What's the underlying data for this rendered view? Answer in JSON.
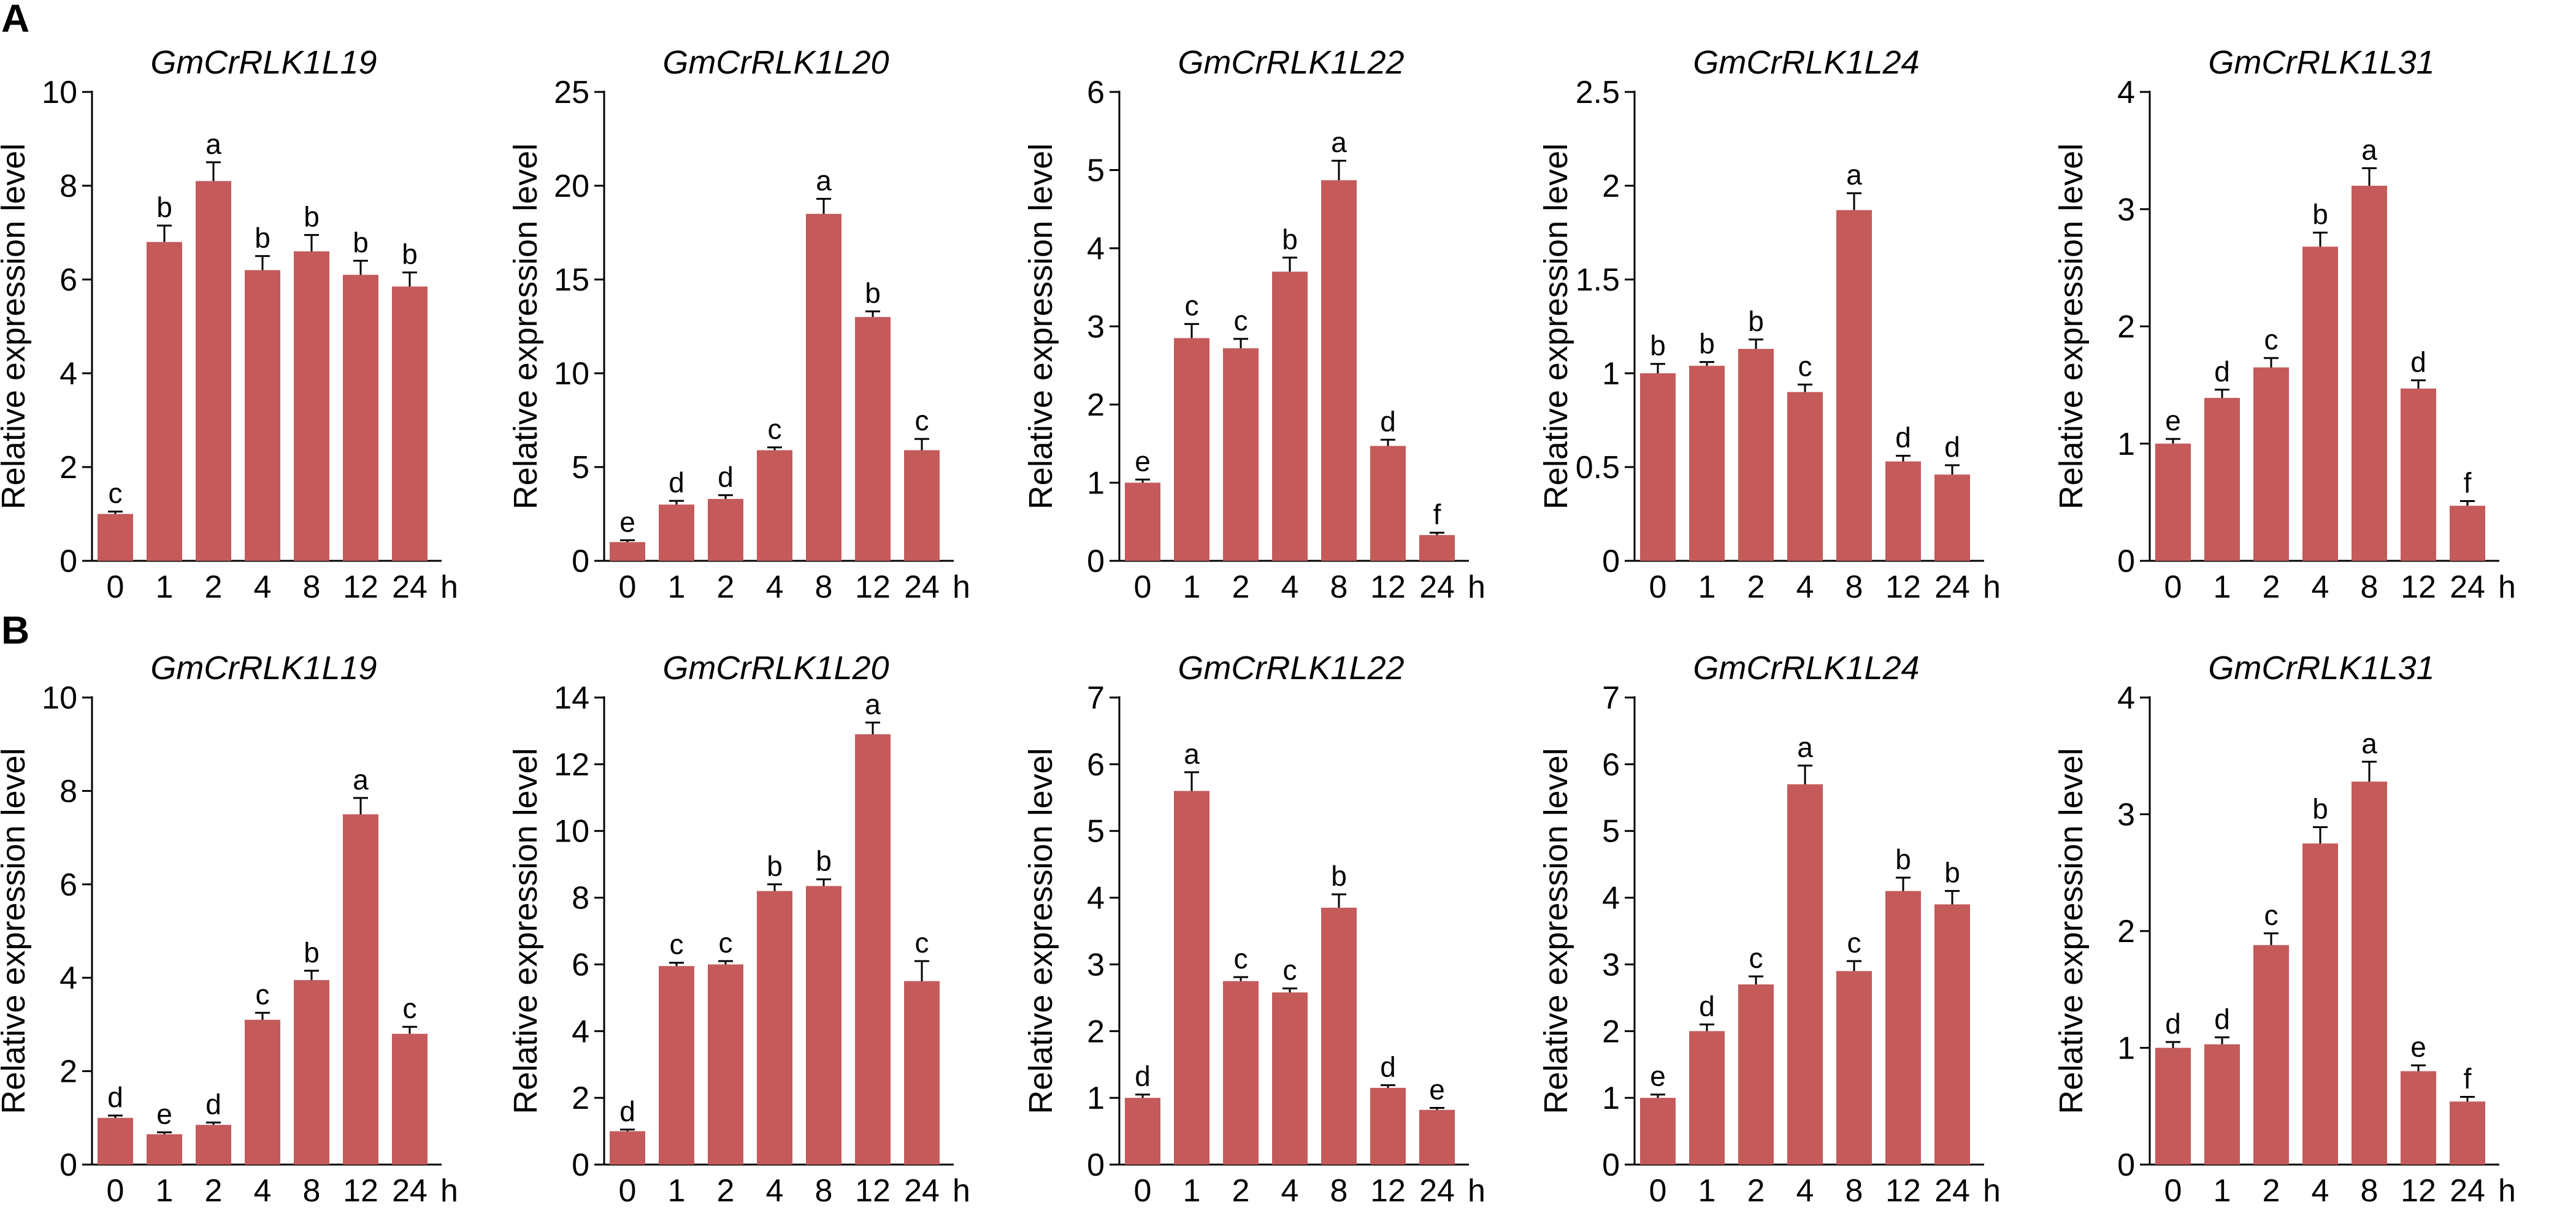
{
  "colors": {
    "bar": "#c55a5a",
    "axis": "#000000",
    "background": "#ffffff"
  },
  "panels": [
    {
      "label": "A",
      "charts": [
        {
          "title": "GmCrRLK1L19",
          "ylabel": "Relative expression level",
          "ylim": [
            0,
            10
          ],
          "yticks": [
            0,
            2,
            4,
            6,
            8,
            10
          ],
          "ytick_labels": [
            "0",
            "2",
            "4",
            "6",
            "8",
            "10"
          ],
          "categories": [
            "0",
            "1",
            "2",
            "4",
            "8",
            "12",
            "24"
          ],
          "unit": "h",
          "values": [
            1.0,
            6.8,
            8.1,
            6.2,
            6.6,
            6.1,
            5.85
          ],
          "errors": [
            0.05,
            0.35,
            0.4,
            0.3,
            0.35,
            0.3,
            0.3
          ],
          "letters": [
            "c",
            "b",
            "a",
            "b",
            "b",
            "b",
            "b"
          ]
        },
        {
          "title": "GmCrRLK1L20",
          "ylabel": "Relative expression level",
          "ylim": [
            0,
            25
          ],
          "yticks": [
            0,
            5,
            10,
            15,
            20,
            25
          ],
          "ytick_labels": [
            "0",
            "5",
            "10",
            "15",
            "20",
            "25"
          ],
          "categories": [
            "0",
            "1",
            "2",
            "4",
            "8",
            "12",
            "24"
          ],
          "unit": "h",
          "values": [
            1.0,
            3.0,
            3.3,
            5.9,
            18.5,
            13.0,
            5.9
          ],
          "errors": [
            0.1,
            0.2,
            0.2,
            0.15,
            0.8,
            0.3,
            0.6
          ],
          "letters": [
            "e",
            "d",
            "d",
            "c",
            "a",
            "b",
            "c"
          ]
        },
        {
          "title": "GmCrRLK1L22",
          "ylabel": "Relative expression level",
          "ylim": [
            0,
            6
          ],
          "yticks": [
            0,
            1,
            2,
            3,
            4,
            5,
            6
          ],
          "ytick_labels": [
            "0",
            "1",
            "2",
            "3",
            "4",
            "5",
            "6"
          ],
          "categories": [
            "0",
            "1",
            "2",
            "4",
            "8",
            "12",
            "24"
          ],
          "unit": "h",
          "values": [
            1.0,
            2.85,
            2.72,
            3.7,
            4.87,
            1.47,
            0.33
          ],
          "errors": [
            0.04,
            0.18,
            0.12,
            0.18,
            0.25,
            0.08,
            0.03
          ],
          "letters": [
            "e",
            "c",
            "c",
            "b",
            "a",
            "d",
            "f"
          ]
        },
        {
          "title": "GmCrRLK1L24",
          "ylabel": "Relative expression level",
          "ylim": [
            0,
            2.5
          ],
          "yticks": [
            0,
            0.5,
            1,
            1.5,
            2,
            2.5
          ],
          "ytick_labels": [
            "0",
            "0.5",
            "1",
            "1.5",
            "2",
            "2.5"
          ],
          "categories": [
            "0",
            "1",
            "2",
            "4",
            "8",
            "12",
            "24"
          ],
          "unit": "h",
          "values": [
            1.0,
            1.04,
            1.13,
            0.9,
            1.87,
            0.53,
            0.46
          ],
          "errors": [
            0.05,
            0.02,
            0.05,
            0.04,
            0.09,
            0.03,
            0.05
          ],
          "letters": [
            "b",
            "b",
            "b",
            "c",
            "a",
            "d",
            "d"
          ]
        },
        {
          "title": "GmCrRLK1L31",
          "ylabel": "Relative expression level",
          "ylim": [
            0,
            4
          ],
          "yticks": [
            0,
            1,
            2,
            3,
            4
          ],
          "ytick_labels": [
            "0",
            "1",
            "2",
            "3",
            "4"
          ],
          "categories": [
            "0",
            "1",
            "2",
            "4",
            "8",
            "12",
            "24"
          ],
          "unit": "h",
          "values": [
            1.0,
            1.39,
            1.65,
            2.68,
            3.2,
            1.47,
            0.47
          ],
          "errors": [
            0.04,
            0.07,
            0.08,
            0.12,
            0.15,
            0.07,
            0.04
          ],
          "letters": [
            "e",
            "d",
            "c",
            "b",
            "a",
            "d",
            "f"
          ]
        }
      ]
    },
    {
      "label": "B",
      "charts": [
        {
          "title": "GmCrRLK1L19",
          "ylabel": "Relative expression level",
          "ylim": [
            0,
            10
          ],
          "yticks": [
            0,
            2,
            4,
            6,
            8,
            10
          ],
          "ytick_labels": [
            "0",
            "2",
            "4",
            "6",
            "8",
            "10"
          ],
          "categories": [
            "0",
            "1",
            "2",
            "4",
            "8",
            "12",
            "24"
          ],
          "unit": "h",
          "values": [
            1.0,
            0.65,
            0.85,
            3.1,
            3.95,
            7.5,
            2.8
          ],
          "errors": [
            0.05,
            0.04,
            0.05,
            0.15,
            0.2,
            0.35,
            0.15
          ],
          "letters": [
            "d",
            "e",
            "d",
            "c",
            "b",
            "a",
            "c"
          ]
        },
        {
          "title": "GmCrRLK1L20",
          "ylabel": "Relative expression level",
          "ylim": [
            0,
            14
          ],
          "yticks": [
            0,
            2,
            4,
            6,
            8,
            10,
            12,
            14
          ],
          "ytick_labels": [
            "0",
            "2",
            "4",
            "6",
            "8",
            "10",
            "12",
            "14"
          ],
          "categories": [
            "0",
            "1",
            "2",
            "4",
            "8",
            "12",
            "24"
          ],
          "unit": "h",
          "values": [
            1.0,
            5.95,
            6.0,
            8.2,
            8.35,
            12.9,
            5.5
          ],
          "errors": [
            0.05,
            0.1,
            0.1,
            0.2,
            0.2,
            0.35,
            0.6
          ],
          "letters": [
            "d",
            "c",
            "c",
            "b",
            "b",
            "a",
            "c"
          ]
        },
        {
          "title": "GmCrRLK1L22",
          "ylabel": "Relative expression level",
          "ylim": [
            0,
            7
          ],
          "yticks": [
            0,
            1,
            2,
            3,
            4,
            5,
            6,
            7
          ],
          "ytick_labels": [
            "0",
            "1",
            "2",
            "3",
            "4",
            "5",
            "6",
            "7"
          ],
          "categories": [
            "0",
            "1",
            "2",
            "4",
            "8",
            "12",
            "24"
          ],
          "unit": "h",
          "values": [
            1.0,
            5.6,
            2.75,
            2.58,
            3.85,
            1.15,
            0.82
          ],
          "errors": [
            0.05,
            0.28,
            0.06,
            0.06,
            0.2,
            0.04,
            0.03
          ],
          "letters": [
            "d",
            "a",
            "c",
            "c",
            "b",
            "d",
            "e"
          ]
        },
        {
          "title": "GmCrRLK1L24",
          "ylabel": "Relative expression level",
          "ylim": [
            0,
            7
          ],
          "yticks": [
            0,
            1,
            2,
            3,
            4,
            5,
            6,
            7
          ],
          "ytick_labels": [
            "0",
            "1",
            "2",
            "3",
            "4",
            "5",
            "6",
            "7"
          ],
          "categories": [
            "0",
            "1",
            "2",
            "4",
            "8",
            "12",
            "24"
          ],
          "unit": "h",
          "values": [
            1.0,
            2.0,
            2.7,
            5.7,
            2.9,
            4.1,
            3.9
          ],
          "errors": [
            0.05,
            0.1,
            0.12,
            0.28,
            0.15,
            0.2,
            0.2
          ],
          "letters": [
            "e",
            "d",
            "c",
            "a",
            "c",
            "b",
            "b"
          ]
        },
        {
          "title": "GmCrRLK1L31",
          "ylabel": "Relative expression level",
          "ylim": [
            0,
            4
          ],
          "yticks": [
            0,
            1,
            2,
            3,
            4
          ],
          "ytick_labels": [
            "0",
            "1",
            "2",
            "3",
            "4"
          ],
          "categories": [
            "0",
            "1",
            "2",
            "4",
            "8",
            "12",
            "24"
          ],
          "unit": "h",
          "values": [
            1.0,
            1.03,
            1.88,
            2.75,
            3.28,
            0.8,
            0.54
          ],
          "errors": [
            0.05,
            0.06,
            0.1,
            0.14,
            0.17,
            0.05,
            0.04
          ],
          "letters": [
            "d",
            "d",
            "c",
            "b",
            "a",
            "e",
            "f"
          ]
        }
      ]
    }
  ],
  "chart_data": [
    {
      "type": "bar",
      "panel": "A",
      "title": "GmCrRLK1L19",
      "xlabel": "h",
      "ylabel": "Relative expression level",
      "categories": [
        "0",
        "1",
        "2",
        "4",
        "8",
        "12",
        "24"
      ],
      "values": [
        1.0,
        6.8,
        8.1,
        6.2,
        6.6,
        6.1,
        5.85
      ],
      "errors": [
        0.05,
        0.35,
        0.4,
        0.3,
        0.35,
        0.3,
        0.3
      ],
      "letters": [
        "c",
        "b",
        "a",
        "b",
        "b",
        "b",
        "b"
      ],
      "ylim": [
        0,
        10
      ]
    },
    {
      "type": "bar",
      "panel": "A",
      "title": "GmCrRLK1L20",
      "xlabel": "h",
      "ylabel": "Relative expression level",
      "categories": [
        "0",
        "1",
        "2",
        "4",
        "8",
        "12",
        "24"
      ],
      "values": [
        1.0,
        3.0,
        3.3,
        5.9,
        18.5,
        13.0,
        5.9
      ],
      "errors": [
        0.1,
        0.2,
        0.2,
        0.15,
        0.8,
        0.3,
        0.6
      ],
      "letters": [
        "e",
        "d",
        "d",
        "c",
        "a",
        "b",
        "c"
      ],
      "ylim": [
        0,
        25
      ]
    },
    {
      "type": "bar",
      "panel": "A",
      "title": "GmCrRLK1L22",
      "xlabel": "h",
      "ylabel": "Relative expression level",
      "categories": [
        "0",
        "1",
        "2",
        "4",
        "8",
        "12",
        "24"
      ],
      "values": [
        1.0,
        2.85,
        2.72,
        3.7,
        4.87,
        1.47,
        0.33
      ],
      "errors": [
        0.04,
        0.18,
        0.12,
        0.18,
        0.25,
        0.08,
        0.03
      ],
      "letters": [
        "e",
        "c",
        "c",
        "b",
        "a",
        "d",
        "f"
      ],
      "ylim": [
        0,
        6
      ]
    },
    {
      "type": "bar",
      "panel": "A",
      "title": "GmCrRLK1L24",
      "xlabel": "h",
      "ylabel": "Relative expression level",
      "categories": [
        "0",
        "1",
        "2",
        "4",
        "8",
        "12",
        "24"
      ],
      "values": [
        1.0,
        1.04,
        1.13,
        0.9,
        1.87,
        0.53,
        0.46
      ],
      "errors": [
        0.05,
        0.02,
        0.05,
        0.04,
        0.09,
        0.03,
        0.05
      ],
      "letters": [
        "b",
        "b",
        "b",
        "c",
        "a",
        "d",
        "d"
      ],
      "ylim": [
        0,
        2.5
      ]
    },
    {
      "type": "bar",
      "panel": "A",
      "title": "GmCrRLK1L31",
      "xlabel": "h",
      "ylabel": "Relative expression level",
      "categories": [
        "0",
        "1",
        "2",
        "4",
        "8",
        "12",
        "24"
      ],
      "values": [
        1.0,
        1.39,
        1.65,
        2.68,
        3.2,
        1.47,
        0.47
      ],
      "errors": [
        0.04,
        0.07,
        0.08,
        0.12,
        0.15,
        0.07,
        0.04
      ],
      "letters": [
        "e",
        "d",
        "c",
        "b",
        "a",
        "d",
        "f"
      ],
      "ylim": [
        0,
        4
      ]
    },
    {
      "type": "bar",
      "panel": "B",
      "title": "GmCrRLK1L19",
      "xlabel": "h",
      "ylabel": "Relative expression level",
      "categories": [
        "0",
        "1",
        "2",
        "4",
        "8",
        "12",
        "24"
      ],
      "values": [
        1.0,
        0.65,
        0.85,
        3.1,
        3.95,
        7.5,
        2.8
      ],
      "errors": [
        0.05,
        0.04,
        0.05,
        0.15,
        0.2,
        0.35,
        0.15
      ],
      "letters": [
        "d",
        "e",
        "d",
        "c",
        "b",
        "a",
        "c"
      ],
      "ylim": [
        0,
        10
      ]
    },
    {
      "type": "bar",
      "panel": "B",
      "title": "GmCrRLK1L20",
      "xlabel": "h",
      "ylabel": "Relative expression level",
      "categories": [
        "0",
        "1",
        "2",
        "4",
        "8",
        "12",
        "24"
      ],
      "values": [
        1.0,
        5.95,
        6.0,
        8.2,
        8.35,
        12.9,
        5.5
      ],
      "errors": [
        0.05,
        0.1,
        0.1,
        0.2,
        0.2,
        0.35,
        0.6
      ],
      "letters": [
        "d",
        "c",
        "c",
        "b",
        "b",
        "a",
        "c"
      ],
      "ylim": [
        0,
        14
      ]
    },
    {
      "type": "bar",
      "panel": "B",
      "title": "GmCrRLK1L22",
      "xlabel": "h",
      "ylabel": "Relative expression level",
      "categories": [
        "0",
        "1",
        "2",
        "4",
        "8",
        "12",
        "24"
      ],
      "values": [
        1.0,
        5.6,
        2.75,
        2.58,
        3.85,
        1.15,
        0.82
      ],
      "errors": [
        0.05,
        0.28,
        0.06,
        0.06,
        0.2,
        0.04,
        0.03
      ],
      "letters": [
        "d",
        "a",
        "c",
        "c",
        "b",
        "d",
        "e"
      ],
      "ylim": [
        0,
        7
      ]
    },
    {
      "type": "bar",
      "panel": "B",
      "title": "GmCrRLK1L24",
      "xlabel": "h",
      "ylabel": "Relative expression level",
      "categories": [
        "0",
        "1",
        "2",
        "4",
        "8",
        "12",
        "24"
      ],
      "values": [
        1.0,
        2.0,
        2.7,
        5.7,
        2.9,
        4.1,
        3.9
      ],
      "errors": [
        0.05,
        0.1,
        0.12,
        0.28,
        0.15,
        0.2,
        0.2
      ],
      "letters": [
        "e",
        "d",
        "c",
        "a",
        "c",
        "b",
        "b"
      ],
      "ylim": [
        0,
        7
      ]
    },
    {
      "type": "bar",
      "panel": "B",
      "title": "GmCrRLK1L31",
      "xlabel": "h",
      "ylabel": "Relative expression level",
      "categories": [
        "0",
        "1",
        "2",
        "4",
        "8",
        "12",
        "24"
      ],
      "values": [
        1.0,
        1.03,
        1.88,
        2.75,
        3.28,
        0.8,
        0.54
      ],
      "errors": [
        0.05,
        0.06,
        0.1,
        0.14,
        0.17,
        0.05,
        0.04
      ],
      "letters": [
        "d",
        "d",
        "c",
        "b",
        "a",
        "e",
        "f"
      ],
      "ylim": [
        0,
        4
      ]
    }
  ]
}
